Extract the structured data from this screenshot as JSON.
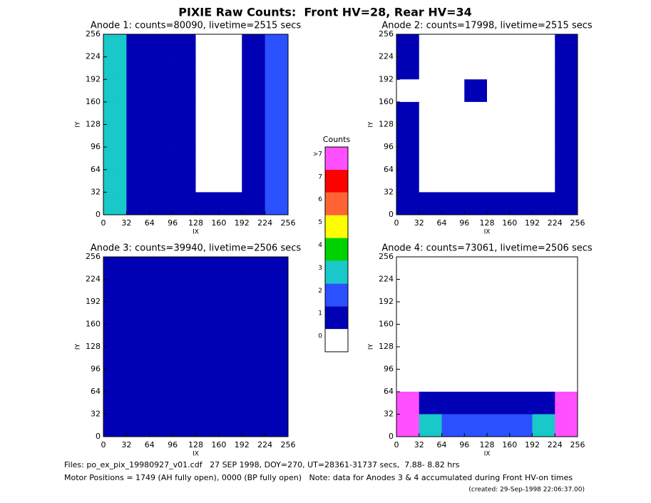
{
  "title": "PIXIE Raw Counts:  Front HV=28, Rear HV=34",
  "chart_data": [
    {
      "type": "heatmap",
      "title": "Anode 1: counts=80090, livetime=2515 secs",
      "x_label": "IX",
      "y_label": "IY",
      "xlim": [
        0,
        256
      ],
      "ylim": [
        0,
        256
      ],
      "xticks": [
        0,
        32,
        64,
        96,
        128,
        160,
        192,
        224,
        256
      ],
      "yticks": [
        0,
        32,
        64,
        96,
        128,
        160,
        192,
        224,
        256
      ],
      "values": [
        [
          3,
          1.6,
          1.4,
          1.2,
          0.6,
          0.6,
          1.2,
          2.6
        ],
        [
          3.2,
          1.5,
          1.3,
          1.5,
          0.5,
          0.5,
          1.1,
          2.8
        ],
        [
          3,
          1.4,
          1.2,
          1.6,
          0.5,
          0.4,
          1,
          2.5
        ],
        [
          3.1,
          1.5,
          1.6,
          1.3,
          0.5,
          0.4,
          1,
          2.7
        ],
        [
          3,
          1.4,
          1.3,
          1.2,
          0.6,
          0.5,
          1.1,
          2.6
        ],
        [
          3.2,
          1.5,
          1.2,
          1.6,
          0.5,
          0.5,
          1,
          2.6
        ],
        [
          3,
          1.3,
          1.2,
          1.2,
          0.6,
          0.6,
          1.1,
          2.5
        ],
        [
          3.3,
          1.8,
          1.6,
          1.6,
          1.5,
          1.4,
          1.6,
          2.8
        ]
      ]
    },
    {
      "type": "heatmap",
      "title": "Anode 2: counts=17998, livetime=2515 secs",
      "x_label": "IX",
      "y_label": "IY",
      "xlim": [
        0,
        256
      ],
      "ylim": [
        0,
        256
      ],
      "xticks": [
        0,
        32,
        64,
        96,
        128,
        160,
        192,
        224,
        256
      ],
      "yticks": [
        0,
        32,
        64,
        96,
        128,
        160,
        192,
        224,
        256
      ],
      "values": [
        [
          1.1,
          0.6,
          0.5,
          0.6,
          0.4,
          0.5,
          0.6,
          1.2
        ],
        [
          1,
          0.5,
          0.4,
          0.5,
          0.4,
          0.4,
          0.5,
          1.1
        ],
        [
          0.9,
          0.5,
          0.5,
          1,
          0.4,
          0.4,
          0.5,
          1
        ],
        [
          1.1,
          0.6,
          0.5,
          0.5,
          0.4,
          0.4,
          0.5,
          1.2
        ],
        [
          1.1,
          0.5,
          0.7,
          0.5,
          0.4,
          0.4,
          0.5,
          1
        ],
        [
          1,
          0.6,
          0.5,
          0.5,
          0.4,
          0.4,
          0.5,
          1
        ],
        [
          1.2,
          0.7,
          0.6,
          0.6,
          0.5,
          0.5,
          0.6,
          1.1
        ],
        [
          1.3,
          1.1,
          1,
          1,
          1,
          1,
          1,
          1.2
        ]
      ]
    },
    {
      "type": "heatmap",
      "title": "Anode 3: counts=39940, livetime=2506 secs",
      "x_label": "IX",
      "y_label": "IY",
      "xlim": [
        0,
        256
      ],
      "ylim": [
        0,
        256
      ],
      "xticks": [
        0,
        32,
        64,
        96,
        128,
        160,
        192,
        224,
        256
      ],
      "yticks": [
        0,
        32,
        64,
        96,
        128,
        160,
        192,
        224,
        256
      ],
      "values": [
        [
          1.2,
          1.1,
          1.1,
          1.2,
          1.1,
          1,
          1.1,
          1.2
        ],
        [
          1.3,
          1.1,
          1.2,
          1.1,
          1.2,
          1.1,
          1.1,
          1.2
        ],
        [
          1.2,
          1,
          1.1,
          1.2,
          1.1,
          1,
          1.1,
          1.3
        ],
        [
          1.3,
          1.1,
          1.2,
          1.1,
          1.2,
          1.1,
          1.2,
          1.2
        ],
        [
          1.2,
          1.1,
          1.1,
          1.2,
          1.1,
          1.1,
          1.1,
          1.2
        ],
        [
          1.3,
          1.1,
          1.2,
          1.1,
          1.2,
          1,
          1.1,
          1.3
        ],
        [
          1.2,
          1.1,
          1.1,
          1.2,
          1.1,
          1.1,
          1.1,
          1.2
        ],
        [
          1.3,
          1.2,
          1.2,
          1.2,
          1.2,
          1.2,
          1.2,
          1.3
        ]
      ]
    },
    {
      "type": "heatmap",
      "title": "Anode 4: counts=73061, livetime=2506 secs",
      "x_label": "IX",
      "y_label": "IY",
      "xlim": [
        0,
        256
      ],
      "ylim": [
        0,
        256
      ],
      "xticks": [
        0,
        32,
        64,
        96,
        128,
        160,
        192,
        224,
        256
      ],
      "yticks": [
        0,
        32,
        64,
        96,
        128,
        160,
        192,
        224,
        256
      ],
      "values": [
        [
          0,
          0,
          0,
          0,
          0,
          0,
          0,
          0
        ],
        [
          0,
          0,
          0,
          0,
          0,
          0,
          0,
          0
        ],
        [
          0,
          0,
          0,
          0,
          0,
          0,
          0,
          0
        ],
        [
          0,
          0,
          0,
          0,
          0,
          0,
          0,
          0
        ],
        [
          0,
          0,
          0,
          0,
          0,
          0,
          0,
          0
        ],
        [
          0,
          0,
          0,
          0,
          0,
          0,
          0,
          0
        ],
        [
          8.5,
          1.2,
          1.1,
          1.1,
          1.1,
          1.1,
          1.2,
          8.5
        ],
        [
          8.5,
          3,
          2.5,
          2.2,
          2.2,
          2.5,
          3,
          8.5
        ]
      ]
    }
  ],
  "colorbar": {
    "title": "Counts",
    "labels": [
      "0",
      "1",
      "2",
      "3",
      "4",
      "5",
      "6",
      "7",
      ">7"
    ],
    "colors": [
      "#ffffff",
      "#0000b4",
      "#2a50ff",
      "#19c8c8",
      "#00d200",
      "#ffff00",
      "#ff6432",
      "#ff0000",
      "#ff50ff"
    ]
  },
  "footer": [
    "Files: po_ex_pix_19980927_v01.cdf   27 SEP 1998, DOY=270, UT=28361-31737 secs,  7.88- 8.82 hrs",
    "Motor Positions = 1749 (AH fully open), 0000 (BP fully open)   Note: data for Anodes 3 & 4 accumulated during Front HV-on times",
    "(created: 29-Sep-1998 22:06:37.00)"
  ]
}
